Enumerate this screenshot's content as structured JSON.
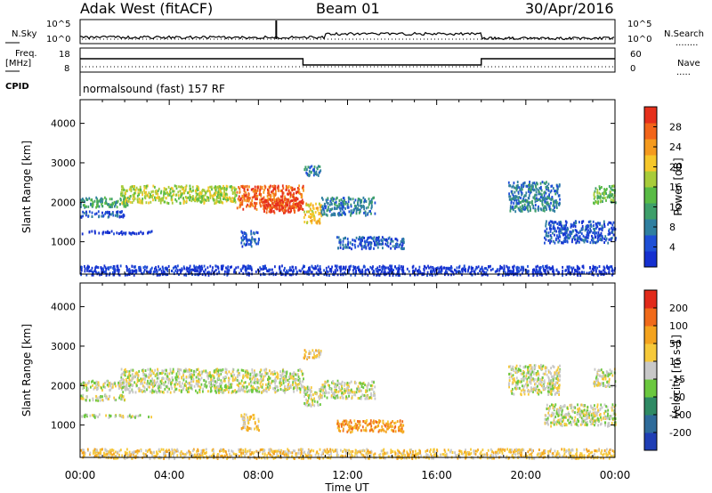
{
  "header": {
    "station": "Adak West (fitACF)",
    "beam": "Beam 01",
    "date": "30/Apr/2016"
  },
  "status_panels": {
    "nsky_label": "N.Sky",
    "nsearch_label": "N.Search",
    "freq_label_1": "Freq.",
    "freq_label_2": "[MHz]",
    "nave_label": "Nave",
    "cpid_label": "CPID",
    "cpid_text": "normalsound (fast) 157 RF",
    "noise_ticks": [
      "10^5",
      "10^0"
    ],
    "freq_ticks": [
      "18",
      "8"
    ],
    "nave_ticks": [
      "60",
      "0"
    ]
  },
  "time_axis": {
    "label": "Time UT",
    "ticks": [
      "00:00",
      "04:00",
      "08:00",
      "12:00",
      "16:00",
      "20:00",
      "00:00"
    ]
  },
  "chart_data": [
    {
      "type": "heatmap",
      "panel": "power",
      "ylabel": "Slant Range [km]",
      "ylim": [
        180,
        4600
      ],
      "yticks": [
        "4000",
        "3000",
        "2000",
        "1000"
      ],
      "xlim_hours": [
        0,
        24
      ],
      "colorbar": {
        "label": "Power [dB]",
        "ticks": [
          "28",
          "24",
          "20",
          "16",
          "12",
          "8",
          "4"
        ],
        "colors": [
          "#1530d0",
          "#1e4fd6",
          "#2f7fa0",
          "#3e9f6a",
          "#59bb45",
          "#a8cc3a",
          "#f6c72a",
          "#f59a1e",
          "#f2651a",
          "#e6301c"
        ]
      },
      "echo_regions": [
        {
          "t_start": 0.0,
          "t_end": 2.2,
          "range_start": 1900,
          "range_end": 2150,
          "level": 3
        },
        {
          "t_start": 0.0,
          "t_end": 2.0,
          "range_start": 1650,
          "range_end": 1800,
          "level": 1
        },
        {
          "t_start": 0.0,
          "t_end": 3.2,
          "range_start": 1220,
          "range_end": 1300,
          "level": 0
        },
        {
          "t_start": 1.8,
          "t_end": 7.0,
          "range_start": 2000,
          "range_end": 2450,
          "level": 5
        },
        {
          "t_start": 7.0,
          "t_end": 10.0,
          "range_start": 1850,
          "range_end": 2450,
          "level": 8
        },
        {
          "t_start": 8.2,
          "t_end": 10.0,
          "range_start": 1750,
          "range_end": 2100,
          "level": 9
        },
        {
          "t_start": 10.0,
          "t_end": 10.8,
          "range_start": 1500,
          "range_end": 2000,
          "level": 6
        },
        {
          "t_start": 10.0,
          "t_end": 10.8,
          "range_start": 2700,
          "range_end": 2950,
          "level": 2
        },
        {
          "t_start": 10.8,
          "t_end": 13.2,
          "range_start": 1700,
          "range_end": 2150,
          "level": 2
        },
        {
          "t_start": 11.5,
          "t_end": 14.5,
          "range_start": 850,
          "range_end": 1150,
          "level": 1
        },
        {
          "t_start": 7.2,
          "t_end": 8.0,
          "range_start": 900,
          "range_end": 1300,
          "level": 1
        },
        {
          "t_start": 19.2,
          "t_end": 21.5,
          "range_start": 1800,
          "range_end": 2550,
          "level": 2
        },
        {
          "t_start": 20.8,
          "t_end": 24.0,
          "range_start": 1000,
          "range_end": 1550,
          "level": 1
        },
        {
          "t_start": 23.0,
          "t_end": 24.0,
          "range_start": 2000,
          "range_end": 2450,
          "level": 4
        },
        {
          "t_start": 0.0,
          "t_end": 24.0,
          "range_start": 180,
          "range_end": 420,
          "level": 0
        }
      ]
    },
    {
      "type": "heatmap",
      "panel": "velocity",
      "ylabel": "Slant Range [km]",
      "ylim": [
        180,
        4600
      ],
      "yticks": [
        "4000",
        "3000",
        "2000",
        "1000"
      ],
      "xlim_hours": [
        0,
        24
      ],
      "colorbar": {
        "label": "Velocity [m s-1]",
        "ticks": [
          "200",
          "100",
          "50",
          "15",
          "-15",
          "-50",
          "-100",
          "-200"
        ],
        "colors": [
          "#1f3eb5",
          "#2e6b9a",
          "#2f8a64",
          "#6bc83f",
          "#c8c8c8",
          "#f6c93a",
          "#f4a31e",
          "#f06a1a",
          "#e12a1a"
        ]
      },
      "echo_regions": [
        {
          "t_start": 0.0,
          "t_end": 2.2,
          "range_start": 1900,
          "range_end": 2150,
          "level": 4
        },
        {
          "t_start": 0.0,
          "t_end": 2.0,
          "range_start": 1650,
          "range_end": 1800,
          "level": 4
        },
        {
          "t_start": 0.0,
          "t_end": 3.2,
          "range_start": 1220,
          "range_end": 1300,
          "level": 4
        },
        {
          "t_start": 1.8,
          "t_end": 10.0,
          "range_start": 1850,
          "range_end": 2450,
          "level": 4
        },
        {
          "t_start": 10.0,
          "t_end": 10.8,
          "range_start": 1500,
          "range_end": 2000,
          "level": 4
        },
        {
          "t_start": 10.0,
          "t_end": 10.8,
          "range_start": 2700,
          "range_end": 2950,
          "level": 5
        },
        {
          "t_start": 10.8,
          "t_end": 13.2,
          "range_start": 1700,
          "range_end": 2150,
          "level": 4
        },
        {
          "t_start": 11.5,
          "t_end": 14.5,
          "range_start": 850,
          "range_end": 1150,
          "level": 6
        },
        {
          "t_start": 7.2,
          "t_end": 8.0,
          "range_start": 900,
          "range_end": 1300,
          "level": 5
        },
        {
          "t_start": 19.2,
          "t_end": 21.5,
          "range_start": 1800,
          "range_end": 2550,
          "level": 4
        },
        {
          "t_start": 20.8,
          "t_end": 24.0,
          "range_start": 1000,
          "range_end": 1550,
          "level": 4
        },
        {
          "t_start": 23.0,
          "t_end": 24.0,
          "range_start": 2000,
          "range_end": 2450,
          "level": 4
        },
        {
          "t_start": 0.0,
          "t_end": 24.0,
          "range_start": 180,
          "range_end": 420,
          "level": 5
        }
      ]
    }
  ]
}
